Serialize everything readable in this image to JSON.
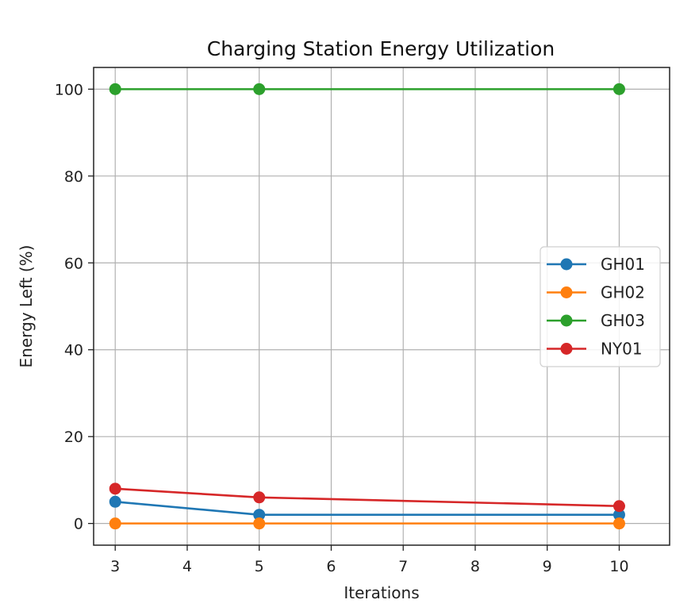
{
  "chart_data": {
    "type": "line",
    "title": "Charging Station Energy Utilization",
    "xlabel": "Iterations",
    "ylabel": "Energy Left (%)",
    "x": [
      3,
      5,
      10
    ],
    "xlim": [
      2.7,
      10.7
    ],
    "ylim": [
      -5,
      105
    ],
    "xticks": [
      3,
      4,
      5,
      6,
      7,
      8,
      9,
      10
    ],
    "yticks": [
      0,
      20,
      40,
      60,
      80,
      100
    ],
    "grid": true,
    "legend_position": "center-right",
    "series": [
      {
        "name": "GH01",
        "color": "#1f77b4",
        "values": [
          5,
          2,
          2
        ]
      },
      {
        "name": "GH02",
        "color": "#ff7f0e",
        "values": [
          0,
          0,
          0
        ]
      },
      {
        "name": "GH03",
        "color": "#2ca02c",
        "values": [
          100,
          100,
          100
        ]
      },
      {
        "name": "NY01",
        "color": "#d62728",
        "values": [
          8,
          6,
          4
        ]
      }
    ]
  }
}
